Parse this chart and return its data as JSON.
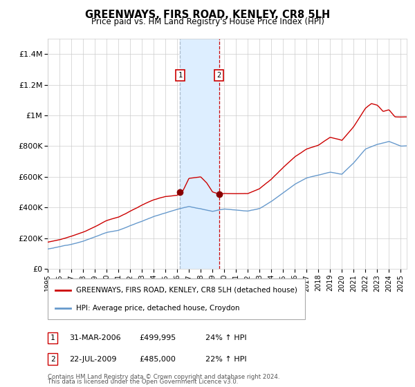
{
  "title": "GREENWAYS, FIRS ROAD, KENLEY, CR8 5LH",
  "subtitle": "Price paid vs. HM Land Registry's House Price Index (HPI)",
  "ylabel_ticks": [
    "£0",
    "£200K",
    "£400K",
    "£600K",
    "£800K",
    "£1M",
    "£1.2M",
    "£1.4M"
  ],
  "ytick_values": [
    0,
    200000,
    400000,
    600000,
    800000,
    1000000,
    1200000,
    1400000
  ],
  "ylim": [
    0,
    1500000
  ],
  "xlim_start": 1995.0,
  "xlim_end": 2025.5,
  "transaction1": {
    "date": 2006.25,
    "price": 499995,
    "label": "1",
    "text": "31-MAR-2006",
    "price_str": "£499,995",
    "hpi_str": "24% ↑ HPI"
  },
  "transaction2": {
    "date": 2009.55,
    "price": 485000,
    "label": "2",
    "text": "22-JUL-2009",
    "price_str": "£485,000",
    "hpi_str": "22% ↑ HPI"
  },
  "line_color_property": "#cc0000",
  "line_color_hpi": "#6699cc",
  "shade_color": "#ddeeff",
  "grid_color": "#cccccc",
  "background_color": "#ffffff",
  "legend_label_property": "GREENWAYS, FIRS ROAD, KENLEY, CR8 5LH (detached house)",
  "legend_label_hpi": "HPI: Average price, detached house, Croydon",
  "footer1": "Contains HM Land Registry data © Crown copyright and database right 2024.",
  "footer2": "This data is licensed under the Open Government Licence v3.0.",
  "hpi_years": [
    1995,
    1996,
    1997,
    1998,
    1999,
    2000,
    2001,
    2002,
    2003,
    2004,
    2005,
    2006,
    2007,
    2008,
    2009,
    2010,
    2011,
    2012,
    2013,
    2014,
    2015,
    2016,
    2017,
    2018,
    2019,
    2020,
    2021,
    2022,
    2023,
    2024,
    2025
  ],
  "hpi_prices": [
    130000,
    145000,
    162000,
    183000,
    210000,
    240000,
    255000,
    285000,
    315000,
    345000,
    370000,
    395000,
    415000,
    400000,
    385000,
    400000,
    395000,
    388000,
    405000,
    450000,
    505000,
    560000,
    600000,
    620000,
    640000,
    625000,
    700000,
    790000,
    820000,
    840000,
    810000
  ],
  "prop_years": [
    1995,
    1996,
    1997,
    1998,
    1999,
    2000,
    2001,
    2002,
    2003,
    2004,
    2005,
    2006.0,
    2006.25,
    2006.5,
    2007,
    2008.0,
    2008.5,
    2009.0,
    2009.55,
    2010,
    2011,
    2012,
    2013,
    2014,
    2015,
    2016,
    2017,
    2018,
    2019,
    2020,
    2021,
    2022.0,
    2022.5,
    2023.0,
    2023.5,
    2024.0,
    2024.5,
    2025.5
  ],
  "prop_prices": [
    175000,
    190000,
    212000,
    238000,
    275000,
    315000,
    338000,
    378000,
    418000,
    452000,
    472000,
    480000,
    499995,
    510000,
    590000,
    600000,
    560000,
    500000,
    485000,
    490000,
    490000,
    490000,
    520000,
    580000,
    655000,
    725000,
    775000,
    800000,
    850000,
    830000,
    920000,
    1040000,
    1070000,
    1060000,
    1020000,
    1030000,
    985000,
    985000
  ]
}
